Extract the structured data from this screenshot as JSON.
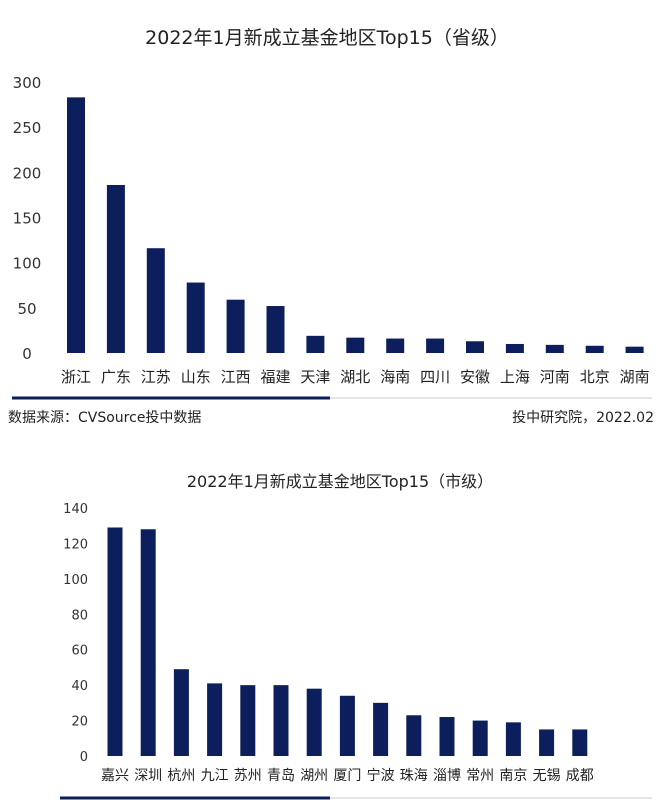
{
  "chart_data": [
    {
      "type": "bar",
      "title": "2022年1月新成立基金地区Top15（省级）",
      "xlabel": "",
      "ylabel": "",
      "ylim": [
        0,
        300
      ],
      "yticks": [
        0,
        50,
        100,
        150,
        200,
        250,
        300
      ],
      "categories": [
        "浙江",
        "广东",
        "江苏",
        "山东",
        "江西",
        "福建",
        "天津",
        "湖北",
        "海南",
        "四川",
        "安徽",
        "上海",
        "河南",
        "北京",
        "湖南"
      ],
      "values": [
        283,
        186,
        116,
        78,
        59,
        52,
        19,
        17,
        16,
        16,
        13,
        10,
        9,
        8,
        7
      ],
      "color": "#0c1f5c",
      "grid": false,
      "legend": "none"
    },
    {
      "type": "bar",
      "title": "2022年1月新成立基金地区Top15（市级）",
      "xlabel": "",
      "ylabel": "",
      "ylim": [
        0,
        140
      ],
      "yticks": [
        0,
        20,
        40,
        60,
        80,
        100,
        120,
        140
      ],
      "categories": [
        "嘉兴",
        "深圳",
        "杭州",
        "九江",
        "苏州",
        "青岛",
        "湖州",
        "厦门",
        "宁波",
        "珠海",
        "淄博",
        "常州",
        "南京",
        "无锡",
        "成都"
      ],
      "values": [
        129,
        128,
        49,
        41,
        40,
        40,
        38,
        34,
        30,
        23,
        22,
        20,
        19,
        15,
        15
      ],
      "color": "#0c1f5c",
      "grid": false,
      "legend": "none"
    }
  ],
  "footer": {
    "source": "数据来源：CVSource投中数据",
    "credit": "投中研究院，2022.02"
  },
  "colors": {
    "bar": "#0c1f5c",
    "accent_line": "#0c1f5c",
    "rule": "#cccccc"
  }
}
